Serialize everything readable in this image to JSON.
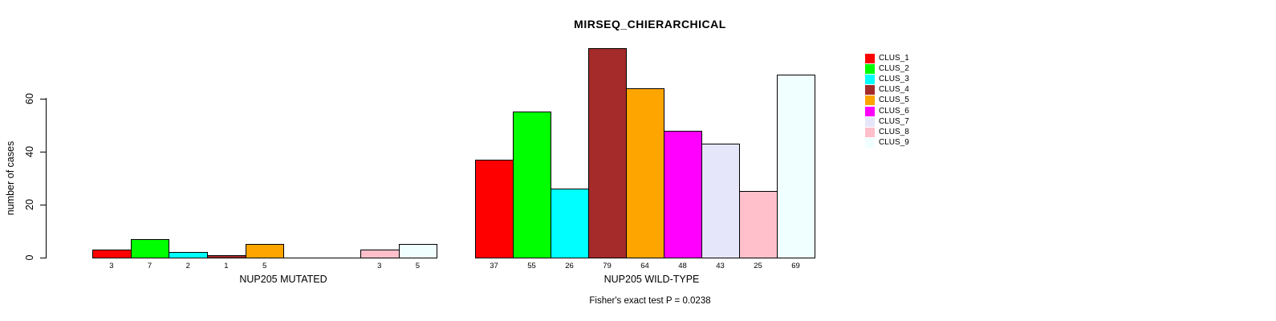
{
  "title": "MIRSEQ_CHIERARCHICAL",
  "annotation": "Fisher's exact test P = 0.0238",
  "chart_data": {
    "type": "bar",
    "title": "MIRSEQ_CHIERARCHICAL",
    "xlabel": "",
    "ylabel": "number of cases",
    "yticks": [
      "0",
      "20",
      "40",
      "60"
    ],
    "ytick_values": [
      0,
      20,
      40,
      60
    ],
    "ylim": [
      0,
      80
    ],
    "grid": false,
    "legend_position": "right",
    "annotation": "Fisher's exact test P = 0.0238",
    "series_colors": [
      "#FF0000",
      "#00FF00",
      "#00FFFF",
      "#A52A2A",
      "#FFA500",
      "#FF00FF",
      "#E6E6FA",
      "#FFC0CB",
      "#F0FFFF"
    ],
    "legend": [
      {
        "label": "CLUS_1",
        "color": "#FF0000"
      },
      {
        "label": "CLUS_2",
        "color": "#00FF00"
      },
      {
        "label": "CLUS_3",
        "color": "#00FFFF"
      },
      {
        "label": "CLUS_4",
        "color": "#A52A2A"
      },
      {
        "label": "CLUS_5",
        "color": "#FFA500"
      },
      {
        "label": "CLUS_6",
        "color": "#FF00FF"
      },
      {
        "label": "CLUS_7",
        "color": "#E6E6FA"
      },
      {
        "label": "CLUS_8",
        "color": "#FFC0CB"
      },
      {
        "label": "CLUS_9",
        "color": "#F0FFFF"
      }
    ],
    "groups": [
      {
        "label": "NUP205 MUTATED",
        "clusters": [
          "CLUS_1",
          "CLUS_2",
          "CLUS_3",
          "CLUS_4",
          "CLUS_5",
          "CLUS_6",
          "CLUS_7",
          "CLUS_8",
          "CLUS_9"
        ],
        "values": [
          3,
          7,
          2,
          1,
          5,
          0,
          0,
          3,
          5
        ],
        "bar_labels": [
          "3",
          "7",
          "2",
          "1",
          "5",
          "",
          "",
          "3",
          "5"
        ]
      },
      {
        "label": "NUP205 WILD-TYPE",
        "clusters": [
          "CLUS_1",
          "CLUS_2",
          "CLUS_3",
          "CLUS_4",
          "CLUS_5",
          "CLUS_6",
          "CLUS_7",
          "CLUS_8",
          "CLUS_9"
        ],
        "values": [
          37,
          55,
          26,
          79,
          64,
          48,
          43,
          25,
          69
        ],
        "bar_labels": [
          "37",
          "55",
          "26",
          "79",
          "64",
          "48",
          "43",
          "25",
          "69"
        ]
      }
    ]
  }
}
